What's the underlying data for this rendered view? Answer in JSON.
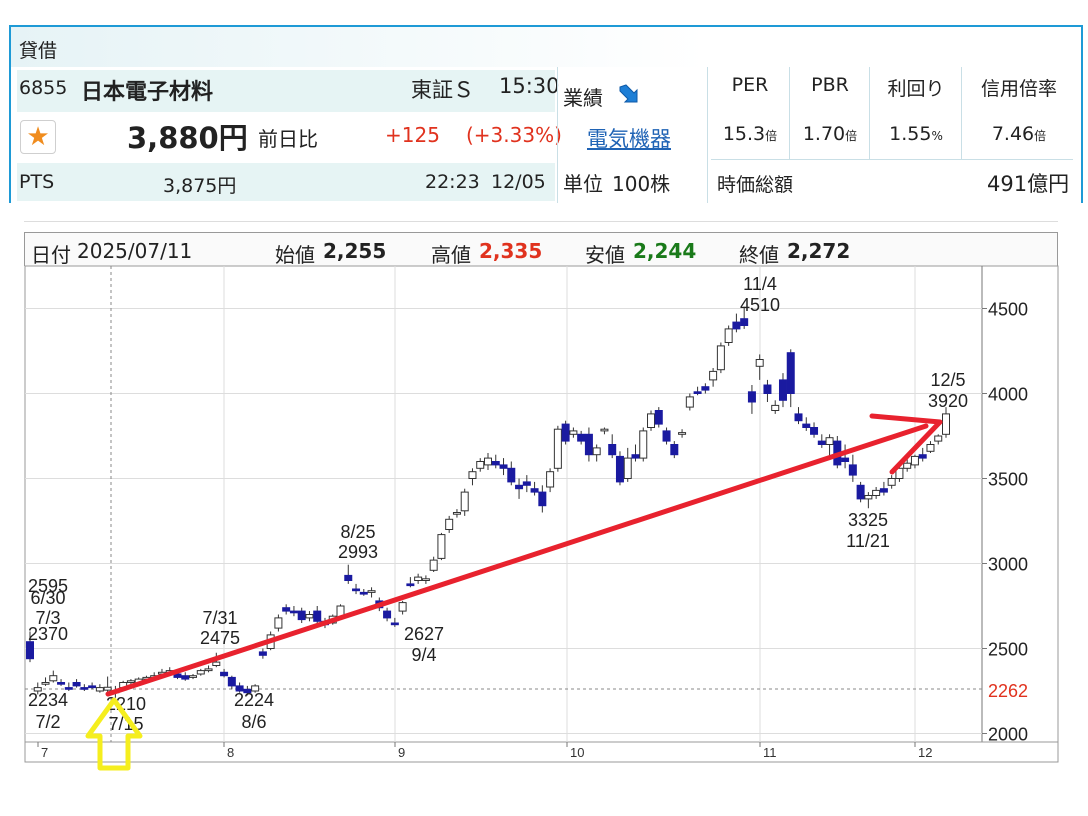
{
  "header": {
    "title": "貸借"
  },
  "stock": {
    "code": "6855",
    "name": "日本電子材料",
    "market": "東証Ｓ",
    "time": "15:30",
    "price": "3,880円",
    "change_label": "前日比",
    "change": "+125",
    "change_pct": "(+3.33%)",
    "pts_label": "PTS",
    "pts_price": "3,875円",
    "pts_time": "22:23",
    "pts_date": "12/05"
  },
  "sector": {
    "results_label": "業績",
    "sector_name": "電気機器",
    "unit_label": "単位",
    "unit_value": "100株"
  },
  "metrics": {
    "per_label": "PER",
    "per_value": "15.3",
    "per_unit": "倍",
    "pbr_label": "PBR",
    "pbr_value": "1.70",
    "pbr_unit": "倍",
    "yield_label": "利回り",
    "yield_value": "1.55",
    "yield_unit": "%",
    "margin_label": "信用倍率",
    "margin_value": "7.46",
    "margin_unit": "倍",
    "mcap_label": "時価総額",
    "mcap_value": "491億円"
  },
  "info_bar": {
    "date_label": "日付",
    "date": "2025/07/11",
    "open_label": "始値",
    "open": "2,255",
    "high_label": "高値",
    "high": "2,335",
    "low_label": "安値",
    "low": "2,244",
    "close_label": "終値",
    "close": "2,272"
  },
  "colors": {
    "accent": "#1e9ad6",
    "up": "#e0321e",
    "down": "#1a7a1a",
    "candle_down": "#1a1aa0",
    "trend_arrow": "#e8222e",
    "highlight_arrow": "#f5ee1e"
  },
  "icons": {
    "favorite": "star-icon",
    "trend": "down-right-arrow-icon"
  },
  "chart_data": {
    "type": "candlestick",
    "x_ticks": [
      "7",
      "8",
      "9",
      "10",
      "11",
      "12"
    ],
    "y_ticks": [
      "4500",
      "4000",
      "3500",
      "3000",
      "2500",
      "2000"
    ],
    "ylim": [
      1950,
      4750
    ],
    "current_price_label": "2262",
    "current_price": 2262,
    "candles": [
      [
        2540,
        2600,
        2420,
        2440
      ],
      [
        2250,
        2300,
        2230,
        2270
      ],
      [
        2290,
        2330,
        2280,
        2300
      ],
      [
        2310,
        2370,
        2300,
        2340
      ],
      [
        2300,
        2320,
        2280,
        2290
      ],
      [
        2270,
        2300,
        2250,
        2260
      ],
      [
        2300,
        2320,
        2270,
        2280
      ],
      [
        2270,
        2290,
        2250,
        2260
      ],
      [
        2280,
        2300,
        2260,
        2270
      ],
      [
        2250,
        2290,
        2240,
        2270
      ],
      [
        2255,
        2335,
        2244,
        2272
      ],
      [
        2250,
        2280,
        2210,
        2240
      ],
      [
        2270,
        2310,
        2260,
        2300
      ],
      [
        2300,
        2320,
        2280,
        2310
      ],
      [
        2290,
        2330,
        2280,
        2320
      ],
      [
        2320,
        2340,
        2300,
        2330
      ],
      [
        2330,
        2360,
        2310,
        2340
      ],
      [
        2350,
        2380,
        2340,
        2360
      ],
      [
        2360,
        2390,
        2340,
        2370
      ],
      [
        2350,
        2370,
        2320,
        2330
      ],
      [
        2340,
        2360,
        2310,
        2320
      ],
      [
        2330,
        2350,
        2320,
        2340
      ],
      [
        2350,
        2380,
        2340,
        2370
      ],
      [
        2370,
        2400,
        2360,
        2380
      ],
      [
        2400,
        2475,
        2390,
        2420
      ],
      [
        2360,
        2380,
        2330,
        2340
      ],
      [
        2330,
        2340,
        2260,
        2280
      ],
      [
        2280,
        2300,
        2240,
        2250
      ],
      [
        2260,
        2280,
        2224,
        2240
      ],
      [
        2250,
        2290,
        2240,
        2280
      ],
      [
        2480,
        2500,
        2440,
        2460
      ],
      [
        2500,
        2600,
        2490,
        2580
      ],
      [
        2620,
        2700,
        2600,
        2680
      ],
      [
        2740,
        2760,
        2700,
        2720
      ],
      [
        2720,
        2750,
        2690,
        2710
      ],
      [
        2720,
        2740,
        2650,
        2670
      ],
      [
        2680,
        2720,
        2660,
        2700
      ],
      [
        2720,
        2750,
        2640,
        2660
      ],
      [
        2660,
        2680,
        2620,
        2640
      ],
      [
        2650,
        2700,
        2640,
        2690
      ],
      [
        2680,
        2760,
        2670,
        2750
      ],
      [
        2930,
        2993,
        2880,
        2900
      ],
      [
        2850,
        2880,
        2820,
        2840
      ],
      [
        2830,
        2850,
        2810,
        2820
      ],
      [
        2830,
        2860,
        2800,
        2840
      ],
      [
        2780,
        2800,
        2720,
        2740
      ],
      [
        2720,
        2740,
        2660,
        2680
      ],
      [
        2650,
        2680,
        2627,
        2640
      ],
      [
        2720,
        2780,
        2700,
        2770
      ],
      [
        2880,
        2920,
        2860,
        2870
      ],
      [
        2900,
        2940,
        2880,
        2920
      ],
      [
        2900,
        2930,
        2880,
        2910
      ],
      [
        2960,
        3040,
        2950,
        3020
      ],
      [
        3030,
        3180,
        3020,
        3170
      ],
      [
        3200,
        3280,
        3180,
        3260
      ],
      [
        3290,
        3320,
        3270,
        3300
      ],
      [
        3310,
        3440,
        3280,
        3420
      ],
      [
        3500,
        3560,
        3460,
        3540
      ],
      [
        3560,
        3620,
        3540,
        3600
      ],
      [
        3580,
        3650,
        3550,
        3620
      ],
      [
        3600,
        3640,
        3560,
        3580
      ],
      [
        3580,
        3620,
        3520,
        3560
      ],
      [
        3560,
        3600,
        3460,
        3480
      ],
      [
        3460,
        3500,
        3380,
        3440
      ],
      [
        3480,
        3520,
        3420,
        3460
      ],
      [
        3440,
        3480,
        3400,
        3420
      ],
      [
        3420,
        3460,
        3300,
        3340
      ],
      [
        3450,
        3560,
        3420,
        3540
      ],
      [
        3560,
        3810,
        3540,
        3790
      ],
      [
        3820,
        3840,
        3700,
        3720
      ],
      [
        3760,
        3800,
        3740,
        3780
      ],
      [
        3760,
        3780,
        3700,
        3720
      ],
      [
        3760,
        3800,
        3600,
        3640
      ],
      [
        3640,
        3700,
        3600,
        3680
      ],
      [
        3780,
        3800,
        3760,
        3790
      ],
      [
        3700,
        3760,
        3620,
        3640
      ],
      [
        3630,
        3660,
        3460,
        3480
      ],
      [
        3500,
        3680,
        3480,
        3620
      ],
      [
        3640,
        3700,
        3600,
        3620
      ],
      [
        3620,
        3800,
        3600,
        3780
      ],
      [
        3800,
        3900,
        3780,
        3880
      ],
      [
        3900,
        3920,
        3800,
        3820
      ],
      [
        3780,
        3800,
        3700,
        3720
      ],
      [
        3700,
        3720,
        3620,
        3640
      ],
      [
        3760,
        3790,
        3740,
        3770
      ],
      [
        3920,
        4000,
        3900,
        3980
      ],
      [
        4010,
        4040,
        3990,
        4000
      ],
      [
        4040,
        4060,
        4000,
        4020
      ],
      [
        4080,
        4150,
        4040,
        4130
      ],
      [
        4140,
        4300,
        4120,
        4280
      ],
      [
        4300,
        4400,
        4280,
        4380
      ],
      [
        4420,
        4470,
        4360,
        4380
      ],
      [
        4440,
        4510,
        4380,
        4400
      ],
      [
        4010,
        4050,
        3880,
        3950
      ],
      [
        4160,
        4230,
        4080,
        4200
      ],
      [
        4050,
        4080,
        3950,
        4000
      ],
      [
        3900,
        3960,
        3880,
        3930
      ],
      [
        4080,
        4120,
        3920,
        3960
      ],
      [
        4240,
        4260,
        3920,
        4000
      ],
      [
        3880,
        3920,
        3820,
        3840
      ],
      [
        3820,
        3860,
        3780,
        3800
      ],
      [
        3800,
        3830,
        3740,
        3760
      ],
      [
        3720,
        3760,
        3680,
        3700
      ],
      [
        3700,
        3760,
        3620,
        3740
      ],
      [
        3720,
        3750,
        3560,
        3580
      ],
      [
        3620,
        3700,
        3560,
        3600
      ],
      [
        3580,
        3640,
        3480,
        3520
      ],
      [
        3460,
        3480,
        3360,
        3380
      ],
      [
        3380,
        3420,
        3325,
        3400
      ],
      [
        3400,
        3450,
        3380,
        3430
      ],
      [
        3440,
        3480,
        3400,
        3420
      ],
      [
        3460,
        3520,
        3440,
        3500
      ],
      [
        3500,
        3580,
        3480,
        3560
      ],
      [
        3560,
        3620,
        3540,
        3590
      ],
      [
        3580,
        3640,
        3560,
        3630
      ],
      [
        3640,
        3680,
        3600,
        3620
      ],
      [
        3660,
        3720,
        3650,
        3700
      ],
      [
        3720,
        3760,
        3700,
        3750
      ],
      [
        3760,
        3920,
        3740,
        3880
      ]
    ],
    "annotations": [
      {
        "date": "6/30",
        "value": "2595"
      },
      {
        "date": "7/3",
        "value": "2370"
      },
      {
        "date": "7/2",
        "value": "2234"
      },
      {
        "date": "7/15",
        "value": "2210"
      },
      {
        "date": "7/31",
        "value": "2475"
      },
      {
        "date": "8/6",
        "value": "2224"
      },
      {
        "date": "8/25",
        "value": "2993"
      },
      {
        "date": "9/4",
        "value": "2627"
      },
      {
        "date": "11/4",
        "value": "4510"
      },
      {
        "date": "11/21",
        "value": "3325"
      },
      {
        "date": "12/5",
        "value": "3920"
      }
    ]
  }
}
